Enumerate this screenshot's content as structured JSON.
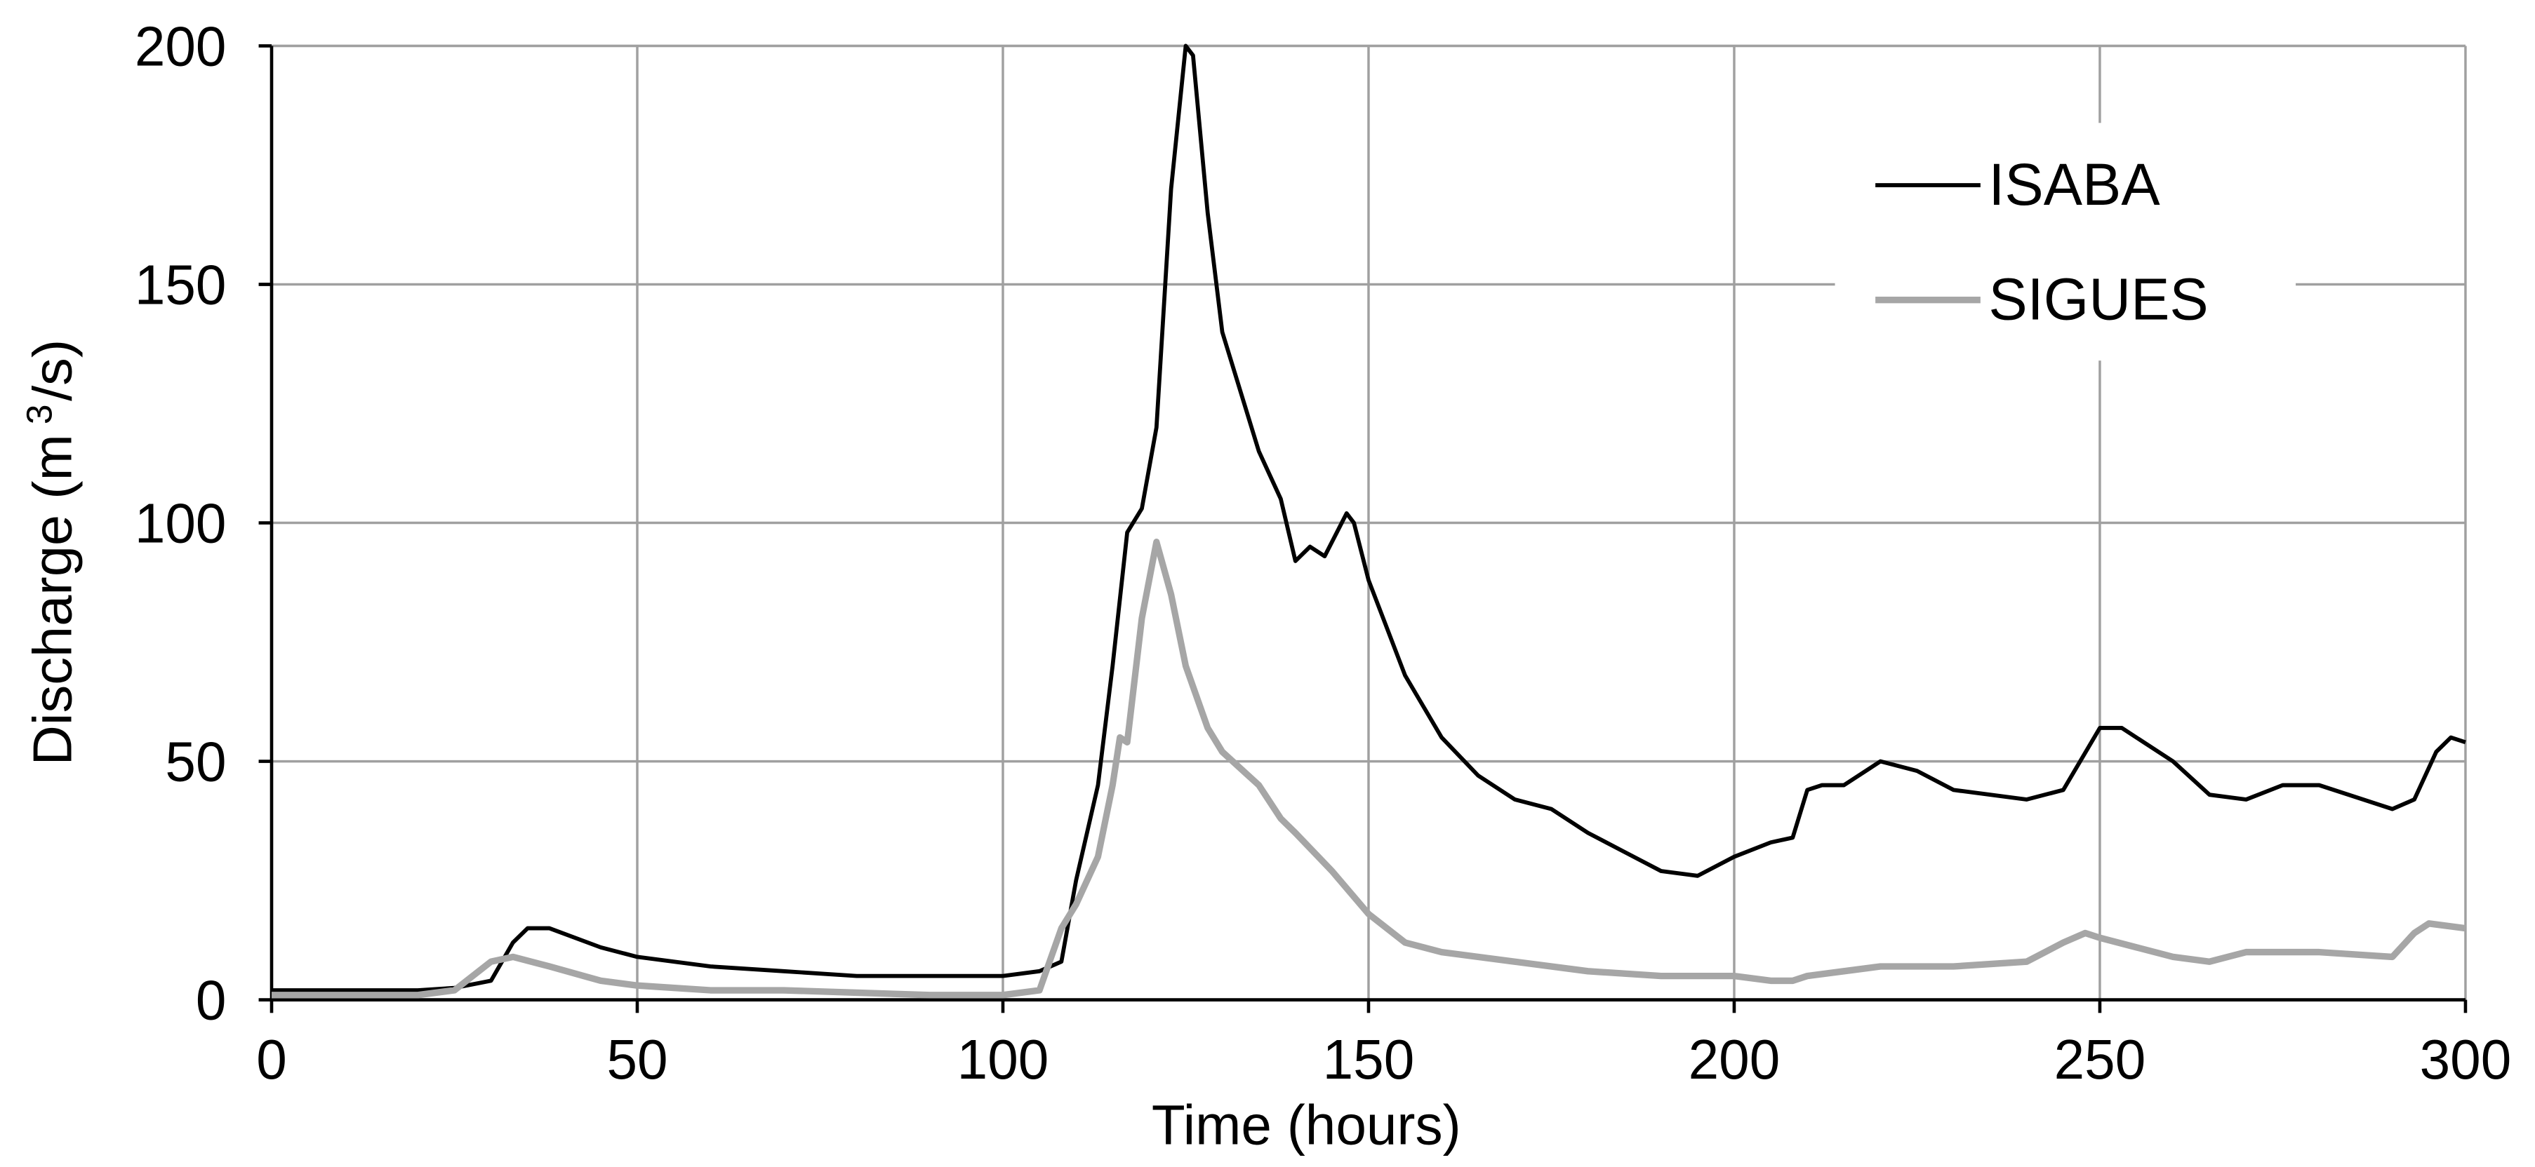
{
  "chart_data": {
    "type": "line",
    "x_label": "Time (hours)",
    "y_label": [
      "Discharge (m",
      "3",
      "/s)"
    ],
    "xlim": [
      0,
      300
    ],
    "xticks": [
      0,
      50,
      100,
      150,
      200,
      250,
      300
    ],
    "ylim": [
      0,
      200
    ],
    "yticks": [
      0,
      50,
      100,
      150,
      200
    ],
    "grid": true,
    "legend": "upper right",
    "series": [
      {
        "name": "ISABA",
        "color": "#000000",
        "x": [
          0,
          10,
          20,
          25,
          30,
          33,
          35,
          38,
          45,
          50,
          60,
          70,
          80,
          90,
          100,
          105,
          108,
          110,
          113,
          115,
          117,
          119,
          121,
          123,
          125,
          126,
          128,
          130,
          135,
          138,
          140,
          142,
          144,
          147,
          148,
          150,
          155,
          160,
          165,
          170,
          175,
          180,
          185,
          190,
          195,
          200,
          205,
          208,
          210,
          212,
          215,
          220,
          225,
          230,
          240,
          245,
          250,
          253,
          260,
          265,
          270,
          275,
          280,
          290,
          293,
          296,
          298,
          300
        ],
        "values": [
          2,
          2,
          2,
          2.5,
          4,
          12,
          15,
          15,
          11,
          9,
          7,
          6,
          5,
          5,
          5,
          6,
          8,
          25,
          45,
          70,
          98,
          103,
          120,
          170,
          200,
          198,
          165,
          140,
          115,
          105,
          92,
          95,
          93,
          102,
          100,
          88,
          68,
          55,
          47,
          42,
          40,
          35,
          31,
          27,
          26,
          30,
          33,
          34,
          44,
          45,
          45,
          50,
          48,
          44,
          42,
          44,
          57,
          57,
          50,
          43,
          42,
          45,
          45,
          40,
          42,
          52,
          55,
          54
        ]
      },
      {
        "name": "SIGUES",
        "color": "#a6a6a6",
        "x": [
          0,
          20,
          25,
          30,
          33,
          38,
          45,
          50,
          60,
          70,
          80,
          90,
          100,
          105,
          108,
          110,
          113,
          115,
          116,
          117,
          119,
          121,
          123,
          125,
          128,
          130,
          135,
          138,
          140,
          145,
          150,
          155,
          160,
          170,
          180,
          190,
          200,
          205,
          208,
          210,
          215,
          220,
          230,
          240,
          245,
          248,
          250,
          255,
          260,
          265,
          270,
          280,
          290,
          293,
          295,
          300
        ],
        "values": [
          1,
          1,
          2,
          8,
          9,
          7,
          4,
          3,
          2,
          2,
          1.5,
          1,
          1,
          2,
          15,
          20,
          30,
          45,
          55,
          54,
          80,
          96,
          85,
          70,
          57,
          52,
          45,
          38,
          35,
          27,
          18,
          12,
          10,
          8,
          6,
          5,
          5,
          4,
          4,
          5,
          6,
          7,
          7,
          8,
          12,
          14,
          13,
          11,
          9,
          8,
          10,
          10,
          9,
          14,
          16,
          15
        ]
      }
    ]
  }
}
